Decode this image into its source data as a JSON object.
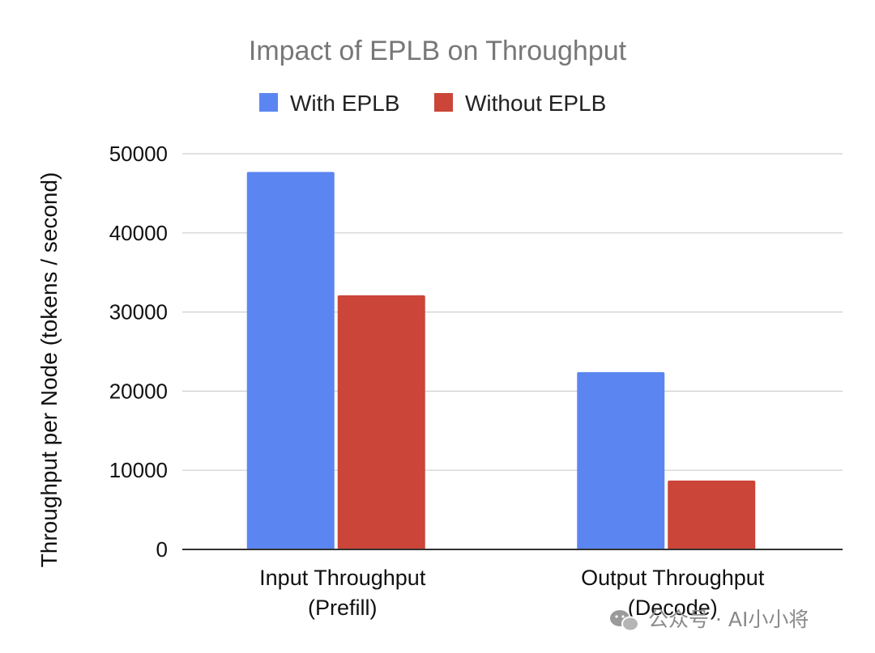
{
  "chart_data": {
    "type": "bar",
    "title": "Impact of EPLB on Throughput",
    "ylabel": "Throughput per Node (tokens / second)",
    "xlabel": "",
    "categories": [
      [
        "Input Throughput",
        "(Prefill)"
      ],
      [
        "Output Throughput",
        "(Decode)"
      ]
    ],
    "series": [
      {
        "name": "With EPLB",
        "color": "#5b86f2",
        "values": [
          47700,
          22400
        ]
      },
      {
        "name": "Without EPLB",
        "color": "#cb4538",
        "values": [
          32100,
          8700
        ]
      }
    ],
    "ylim": [
      0,
      50000
    ],
    "yticks": [
      0,
      10000,
      20000,
      30000,
      40000,
      50000
    ],
    "grid": true,
    "legend_position": "top-center"
  },
  "watermark": {
    "icon": "wechat-icon",
    "text": "公众号 · AI小小将"
  }
}
